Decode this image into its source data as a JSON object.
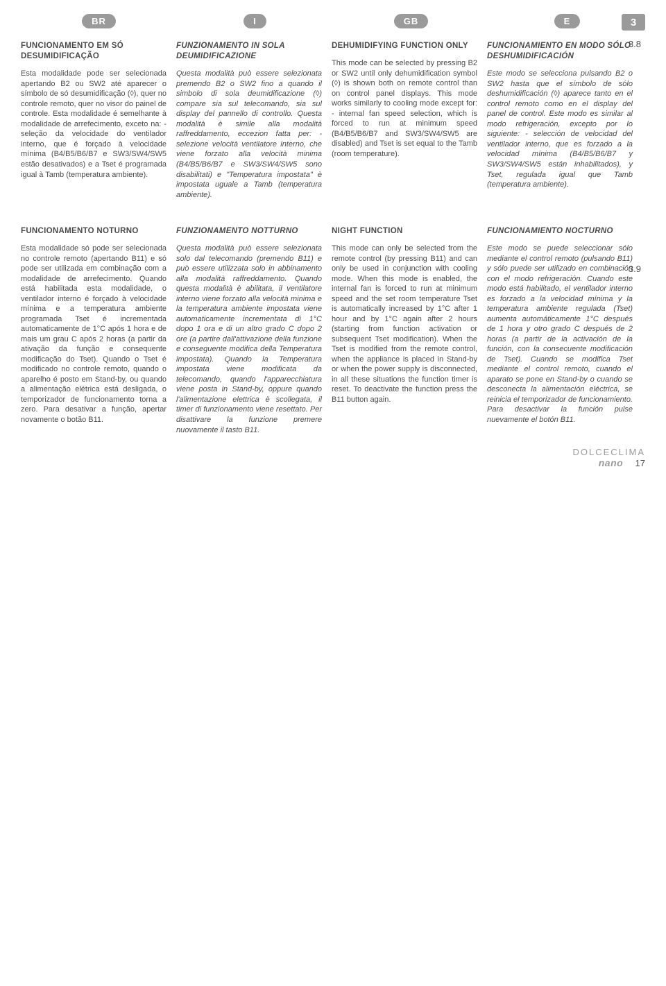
{
  "flags": {
    "br": "BR",
    "i": "I",
    "gb": "GB",
    "e": "E"
  },
  "page_badge": "3",
  "section_numbers": {
    "s1": "3.8",
    "s2": "3.9"
  },
  "row1": {
    "br": {
      "title": "FUNCIONAMENTO EM SÓ DESUMIDIFICAÇÃO",
      "body": "Esta modalidade pode ser selecionada apertando B2 ou SW2 até aparecer o símbolo de só desumidificação (◊), quer no controle remoto, quer no visor do painel de controle. Esta modalidade é semelhante à modalidade de arrefecimento, exceto na:\n- seleção da velocidade do ventilador interno, que é forçado à velocidade mínima (B4/B5/B6/B7 e SW3/SW4/SW5 estão desativados) e a Tset é programada igual à Tamb (temperatura ambiente)."
    },
    "it": {
      "title": "FUNZIONAMENTO IN SOLA DEUMIDIFICAZIONE",
      "body": "Questa modalità può essere selezionata premendo B2 o SW2 fino a quando il simbolo di sola deumidificazione (◊) compare sia sul telecomando, sia sul display del pannello di controllo. Questa modalità è simile alla modalità raffreddamento, eccezion fatta per:\n- selezione velocità ventilatore interno, che viene forzato alla velocità minima (B4/B5/B6/B7 e SW3/SW4/SW5 sono disabilitati) e \"Temperatura impostata\" è impostata uguale a Tamb (temperatura ambiente)."
    },
    "gb": {
      "title": "DEHUMIDIFYING FUNCTION ONLY",
      "body": "This mode can be selected by pressing B2 or SW2 until only dehumidification symbol (◊) is shown both on remote control than on control panel displays. This mode works similarly to cooling mode except for:\n- internal fan speed selection, which is forced to run at minimum speed (B4/B5/B6/B7 and SW3/SW4/SW5 are disabled) and Tset is set equal to the Tamb (room temperature)."
    },
    "es": {
      "title": "FUNCIONAMIENTO EN MODO SÓLO DESHUMIDIFICACIÓN",
      "body": "Este modo se selecciona pulsando B2 o SW2 hasta que el símbolo de sólo deshumidificación (◊) aparece tanto en el control remoto como en el display del panel de control. Este modo es similar al modo refrigeración, excepto por lo siguiente:\n- selección de velocidad del ventilador interno, que es forzado a la velocidad mínima (B4/B5/B6/B7 y SW3/SW4/SW5 están inhabilitados), y Tset, regulada igual que Tamb (temperatura ambiente)."
    }
  },
  "row2": {
    "br": {
      "title": "FUNCIONAMENTO NOTURNO",
      "body": "Esta modalidade só pode ser selecionada no controle remoto (apertando B11) e só pode ser utilizada em combinação com a modalidade de arrefecimento.\nQuando está habilitada esta modalidade, o ventilador interno é forçado à velocidade mínima e a temperatura ambiente programada Tset é incrementada automaticamente de 1°C após 1 hora e de mais um grau C após 2 horas (a partir da ativação da função e consequente modificação do Tset).\nQuando o Tset é modificado no controle remoto, quando o aparelho é posto em Stand-by, ou quando a alimentação elétrica está desligada, o temporizador de funcionamento torna a zero.\nPara desativar a função, apertar novamente o botão B11."
    },
    "it": {
      "title": "FUNZIONAMENTO NOTTURNO",
      "body": "Questa modalità può essere selezionata solo dal telecomando (premendo B11) e può essere utilizzata solo in abbinamento alla modalità raffreddamento.\nQuando questa modalità è abilitata, il ventilatore interno viene forzato alla velocità minima e la temperatura ambiente impostata viene automaticamente incrementata di 1°C dopo 1 ora e di un altro grado C dopo 2 ore (a partire dall'attivazione della funzione e conseguente modifica della Temperatura impostata).\nQuando la Temperatura impostata viene modificata da telecomando, quando l'apparecchiatura viene posta in Stand-by, oppure quando l'alimentazione elettrica è scollegata, il timer di funzionamento viene resettato.\nPer disattivare la funzione premere nuovamente il tasto B11."
    },
    "gb": {
      "title": "NIGHT FUNCTION",
      "body": "This mode can only be selected from the remote control (by pressing B11) and can only be used in conjunction with cooling mode.\nWhen this mode is enabled, the internal fan is forced to run at minimum speed and the set room temperature Tset is automatically increased by 1°C after 1 hour and by 1°C again after 2 hours (starting from function activation or subsequent Tset modification).\nWhen the Tset is modified from the remote control, when the appliance is placed in Stand-by or when the power supply is disconnected, in all these situations the function timer is reset. To deactivate the function press the B11 button again."
    },
    "es": {
      "title": "FUNCIONAMIENTO NOCTURNO",
      "body": "Este modo se puede seleccionar sólo mediante el control remoto (pulsando B11) y sólo puede ser utilizado en combinación con el modo refrigeración.\nCuando este modo está habilitado, el ventilador interno es forzado a la velocidad mínima y la temperatura ambiente regulada (Tset) aumenta automáticamente 1°C después de 1 hora y otro grado C después de 2 horas (a partir de la activación de la función, con la consecuente modificación de Tset).\nCuando se modifica Tset mediante el control remoto, cuando el aparato se pone en Stand-by o cuando se desconecta la alimentación eléctrica, se reinicia el temporizador de funcionamiento.\nPara desactivar la función pulse nuevamente el botón B11."
    }
  },
  "footer": {
    "brand": "DOLCECLIMA",
    "model": "nano",
    "page": "17"
  }
}
